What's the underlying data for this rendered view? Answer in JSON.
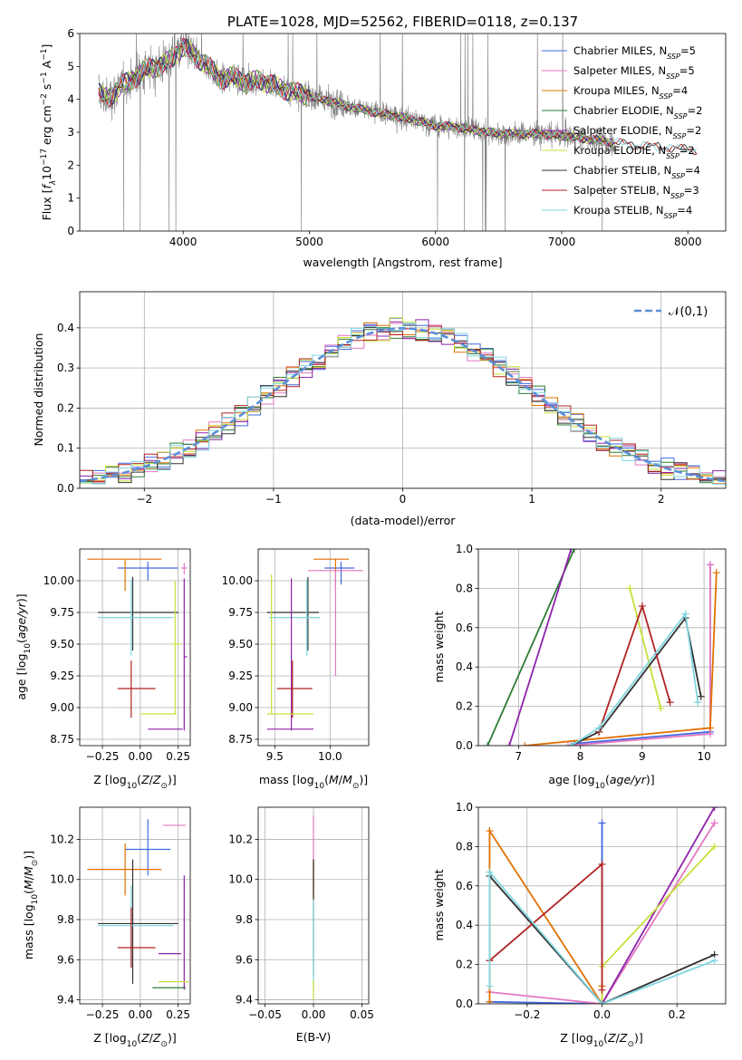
{
  "chart_data": [
    {
      "type": "line",
      "title": "PLATE=1028, MJD=52562, FIBERID=0118, z=0.137",
      "xlabel": "wavelength [Angstrom, rest frame]",
      "ylabel": "Flux [f_λ 10^-17 erg cm^-2 s^-1 A^-1]",
      "xlim": [
        3180,
        8300
      ],
      "ylim": [
        0,
        6
      ],
      "xticks": [
        4000,
        5000,
        6000,
        7000,
        8000
      ],
      "yticks": [
        0,
        1,
        2,
        3,
        4,
        5,
        6
      ],
      "grid": false,
      "legend_position": "top-right",
      "data_color": "#808080",
      "data_range": [
        3330,
        7420
      ],
      "model_range": [
        3330,
        8070
      ],
      "continuum": {
        "x": [
          3330,
          3400,
          3500,
          3600,
          3700,
          3800,
          3900,
          4000,
          4100,
          4200,
          4300,
          4400,
          4500,
          4600,
          4800,
          5000,
          5200,
          5400,
          5600,
          5800,
          6000,
          6200,
          6400,
          6600,
          6800,
          7000,
          7200,
          7400,
          7600,
          7800,
          8070
        ],
        "values": [
          4.2,
          4.0,
          4.4,
          4.6,
          4.9,
          5.0,
          5.2,
          5.6,
          5.3,
          5.0,
          4.6,
          4.7,
          4.5,
          4.6,
          4.3,
          4.1,
          3.9,
          3.7,
          3.55,
          3.4,
          3.2,
          3.15,
          3.0,
          2.95,
          2.95,
          2.9,
          2.8,
          2.7,
          2.6,
          2.55,
          2.45
        ]
      },
      "series": [
        {
          "name": "Chabrier MILES, N_SSP=5",
          "label_main": "Chabrier MILES, N",
          "label_sub": "SSP",
          "label_end": "=5",
          "color": "#4169e1"
        },
        {
          "name": "Salpeter MILES, N_SSP=5",
          "label_main": "Salpeter MILES, N",
          "label_sub": "SSP",
          "label_end": "=5",
          "color": "#e377c2"
        },
        {
          "name": "Kroupa MILES, N_SSP=4",
          "label_main": "Kroupa MILES, N",
          "label_sub": "SSP",
          "label_end": "=4",
          "color": "#e07000"
        },
        {
          "name": "Chabrier ELODIE, N_SSP=2",
          "label_main": "Chabrier ELODIE, N",
          "label_sub": "SSP",
          "label_end": "=2",
          "color": "#2e7d32"
        },
        {
          "name": "Salpeter ELODIE, N_SSP=2",
          "label_main": "Salpeter ELODIE, N",
          "label_sub": "SSP",
          "label_end": "=2",
          "color": "#8e24aa"
        },
        {
          "name": "Kroupa ELODIE, N_SSP=2",
          "label_main": "Kroupa ELODIE, N",
          "label_sub": "SSP",
          "label_end": "=2",
          "color": "#c6e03a"
        },
        {
          "name": "Chabrier STELIB, N_SSP=4",
          "label_main": "Chabrier STELIB, N",
          "label_sub": "SSP",
          "label_end": "=4",
          "color": "#303030"
        },
        {
          "name": "Salpeter STELIB, N_SSP=3",
          "label_main": "Salpeter STELIB, N",
          "label_sub": "SSP",
          "label_end": "=3",
          "color": "#b22222"
        },
        {
          "name": "Kroupa STELIB, N_SSP=4",
          "label_main": "Kroupa STELIB, N",
          "label_sub": "SSP",
          "label_end": "=4",
          "color": "#7fd6e0"
        }
      ]
    },
    {
      "type": "histogram",
      "xlabel": "(data-model)/error",
      "ylabel": "Normed distribution",
      "xlim": [
        -2.5,
        2.5
      ],
      "ylim": [
        0,
        0.49
      ],
      "xticks": [
        -2,
        -1,
        0,
        1,
        2
      ],
      "yticks": [
        0.0,
        0.1,
        0.2,
        0.3,
        0.4
      ],
      "grid": true,
      "legend_position": "top-right",
      "bin_width": 0.1,
      "reference": {
        "name": "𝒩(0,1)",
        "mean": 0,
        "sigma": 1,
        "color": "#5b8fd6"
      }
    },
    {
      "type": "errorbar",
      "xlabel": "Z [log10(Z/Z☉)]",
      "ylabel": "age  [log10(age/yr)]",
      "xlim": [
        -0.4,
        0.33
      ],
      "ylim": [
        8.7,
        10.25
      ],
      "xticks": [
        -0.25,
        0.0,
        0.25
      ],
      "yticks": [
        8.75,
        9.0,
        9.25,
        9.5,
        9.75,
        10.0
      ],
      "grid": true,
      "points": [
        {
          "x": 0.05,
          "xerr": [
            0.2,
            0.2
          ],
          "y": 10.1,
          "yerr": [
            0.1,
            0.05
          ],
          "color": "#4169e1"
        },
        {
          "x": -0.1,
          "xerr": [
            0.25,
            0.24
          ],
          "y": 10.17,
          "yerr": [
            0.25,
            0.0
          ],
          "color": "#e07000"
        },
        {
          "x": 0.29,
          "xerr": [
            0.02,
            0.02
          ],
          "y": 10.1,
          "yerr": [
            0.05,
            0.04
          ],
          "color": "#e377c2"
        },
        {
          "x": -0.05,
          "xerr": [
            0.23,
            0.3
          ],
          "y": 9.75,
          "yerr": [
            0.3,
            0.28
          ],
          "color": "#303030"
        },
        {
          "x": -0.06,
          "xerr": [
            0.22,
            0.28
          ],
          "y": 9.71,
          "yerr": [
            0.3,
            0.3
          ],
          "color": "#7fd6e0"
        },
        {
          "x": 0.23,
          "xerr": [
            0.02,
            0.04
          ],
          "y": 9.5,
          "yerr": [
            0.55,
            0.5
          ],
          "color": "#c6e03a"
        },
        {
          "x": 0.29,
          "xerr": [
            0.0,
            0.02
          ],
          "y": 9.4,
          "yerr": [
            0.58,
            0.62
          ],
          "color": "#8e24aa"
        },
        {
          "x": -0.06,
          "xerr": [
            0.09,
            0.16
          ],
          "y": 9.15,
          "yerr": [
            0.23,
            0.22
          ],
          "color": "#b22222"
        },
        {
          "x": 0.12,
          "xerr": [
            0.12,
            0.12
          ],
          "y": 8.95,
          "yerr": [
            0.0,
            0.0
          ],
          "color": "#c6e03a"
        },
        {
          "x": 0.15,
          "xerr": [
            0.1,
            0.13
          ],
          "y": 8.83,
          "yerr": [
            0.0,
            0.0
          ],
          "color": "#8e24aa"
        }
      ]
    },
    {
      "type": "errorbar",
      "xlabel": "mass [log10(M/M☉)]",
      "ylabel": "",
      "xlim": [
        9.35,
        10.35
      ],
      "ylim": [
        8.7,
        10.25
      ],
      "xticks": [
        9.5,
        10.0
      ],
      "yticks": [
        8.75,
        9.0,
        9.25,
        9.5,
        9.75,
        10.0
      ],
      "grid": true,
      "points": [
        {
          "x": 10.1,
          "xerr": [
            0.15,
            0.12
          ],
          "y": 10.1,
          "yerr": [
            0.13,
            0.05
          ],
          "color": "#4169e1"
        },
        {
          "x": 10.05,
          "xerr": [
            0.2,
            0.12
          ],
          "y": 10.17,
          "yerr": [
            0.22,
            0.0
          ],
          "color": "#e07000"
        },
        {
          "x": 10.05,
          "xerr": [
            0.25,
            0.25
          ],
          "y": 10.08,
          "yerr": [
            0.83,
            0.0
          ],
          "color": "#e377c2"
        },
        {
          "x": 9.8,
          "xerr": [
            0.37,
            0.1
          ],
          "y": 9.75,
          "yerr": [
            0.3,
            0.28
          ],
          "color": "#303030"
        },
        {
          "x": 9.79,
          "xerr": [
            0.34,
            0.12
          ],
          "y": 9.71,
          "yerr": [
            0.3,
            0.3
          ],
          "color": "#7fd6e0"
        },
        {
          "x": 9.47,
          "xerr": [
            0.0,
            0.02
          ],
          "y": 9.5,
          "yerr": [
            0.55,
            0.55
          ],
          "color": "#c6e03a"
        },
        {
          "x": 9.65,
          "xerr": [
            0.0,
            0.0
          ],
          "y": 9.4,
          "yerr": [
            0.58,
            0.62
          ],
          "color": "#8e24aa"
        },
        {
          "x": 9.66,
          "xerr": [
            0.14,
            0.18
          ],
          "y": 9.15,
          "yerr": [
            0.23,
            0.22
          ],
          "color": "#b22222"
        },
        {
          "x": 9.65,
          "xerr": [
            0.22,
            0.2
          ],
          "y": 8.95,
          "yerr": [
            0.0,
            0.0
          ],
          "color": "#c6e03a"
        },
        {
          "x": 9.65,
          "xerr": [
            0.22,
            0.2
          ],
          "y": 8.83,
          "yerr": [
            0.0,
            0.0
          ],
          "color": "#8e24aa"
        }
      ]
    },
    {
      "type": "line",
      "xlabel": "age  [log10(age/yr)]",
      "ylabel": "mass weight",
      "xlim": [
        6.35,
        10.35
      ],
      "ylim": [
        0,
        1
      ],
      "xticks": [
        7,
        8,
        9,
        10
      ],
      "yticks": [
        0.0,
        0.2,
        0.4,
        0.6,
        0.8,
        1.0
      ],
      "grid": true,
      "series": [
        {
          "color": "#4169e1",
          "x": [
            7.9,
            10.1,
            10.1
          ],
          "y": [
            0.01,
            0.07,
            0.92
          ]
        },
        {
          "color": "#e377c2",
          "x": [
            7.8,
            10.1,
            10.1
          ],
          "y": [
            0.0,
            0.06,
            0.92
          ]
        },
        {
          "color": "#e07000",
          "x": [
            7.1,
            10.1,
            10.2
          ],
          "y": [
            0.0,
            0.09,
            0.88
          ]
        },
        {
          "color": "#2e7d32",
          "x": [
            6.5,
            7.9
          ],
          "y": [
            0.0,
            1.0
          ]
        },
        {
          "color": "#8e24aa",
          "x": [
            6.85,
            7.85
          ],
          "y": [
            0.0,
            1.0
          ]
        },
        {
          "color": "#c6e03a",
          "x": [
            8.8,
            9.3
          ],
          "y": [
            0.8,
            0.19
          ]
        },
        {
          "color": "#303030",
          "x": [
            7.85,
            8.3,
            9.7,
            9.95
          ],
          "y": [
            0.0,
            0.07,
            0.65,
            0.25
          ]
        },
        {
          "color": "#b22222",
          "x": [
            8.3,
            9.0,
            9.45
          ],
          "y": [
            0.07,
            0.71,
            0.22
          ]
        },
        {
          "color": "#7fd6e0",
          "x": [
            7.85,
            8.3,
            9.7,
            9.9
          ],
          "y": [
            0.0,
            0.09,
            0.67,
            0.22
          ]
        }
      ]
    },
    {
      "type": "errorbar",
      "xlabel": "Z [log10(Z/Z☉)]",
      "ylabel": "mass [log10(M/M☉)]",
      "xlim": [
        -0.4,
        0.33
      ],
      "ylim": [
        9.38,
        10.36
      ],
      "xticks": [
        -0.25,
        0.0,
        0.25
      ],
      "yticks": [
        9.4,
        9.6,
        9.8,
        10.0,
        10.2
      ],
      "grid": true,
      "points": [
        {
          "x": 0.25,
          "xerr": [
            0.1,
            0.05
          ],
          "y": 10.27,
          "yerr": [
            0.0,
            0.0
          ],
          "color": "#e377c2"
        },
        {
          "x": 0.05,
          "xerr": [
            0.15,
            0.15
          ],
          "y": 10.15,
          "yerr": [
            0.13,
            0.15
          ],
          "color": "#4169e1"
        },
        {
          "x": -0.1,
          "xerr": [
            0.25,
            0.24
          ],
          "y": 10.05,
          "yerr": [
            0.13,
            0.13
          ],
          "color": "#e07000"
        },
        {
          "x": -0.05,
          "xerr": [
            0.23,
            0.3
          ],
          "y": 9.78,
          "yerr": [
            0.3,
            0.32
          ],
          "color": "#303030"
        },
        {
          "x": -0.06,
          "xerr": [
            0.22,
            0.28
          ],
          "y": 9.77,
          "yerr": [
            0.2,
            0.2
          ],
          "color": "#7fd6e0"
        },
        {
          "x": -0.06,
          "xerr": [
            0.09,
            0.16
          ],
          "y": 9.66,
          "yerr": [
            0.1,
            0.2
          ],
          "color": "#b22222"
        },
        {
          "x": 0.22,
          "xerr": [
            0.1,
            0.05
          ],
          "y": 9.63,
          "yerr": [
            0.0,
            0.0
          ],
          "color": "#8e24aa"
        },
        {
          "x": 0.29,
          "xerr": [
            0.0,
            0.0
          ],
          "y": 9.7,
          "yerr": [
            0.25,
            0.32
          ],
          "color": "#8e24aa"
        },
        {
          "x": 0.22,
          "xerr": [
            0.1,
            0.1
          ],
          "y": 9.49,
          "yerr": [
            0.0,
            0.0
          ],
          "color": "#c6e03a"
        },
        {
          "x": 0.2,
          "xerr": [
            0.12,
            0.1
          ],
          "y": 9.46,
          "yerr": [
            0.0,
            0.0
          ],
          "color": "#2e7d32"
        }
      ]
    },
    {
      "type": "errorbar",
      "xlabel": "E(B-V)",
      "ylabel": "",
      "xlim": [
        -0.057,
        0.057
      ],
      "ylim": [
        9.38,
        10.36
      ],
      "xticks": [
        -0.05,
        0.0,
        0.05
      ],
      "yticks": [
        9.4,
        9.6,
        9.8,
        10.0,
        10.2
      ],
      "grid": true,
      "points": [
        {
          "x": 0.0,
          "xerr": [
            0.0,
            0.0
          ],
          "y": 10.1,
          "yerr": [
            0.15,
            0.22
          ],
          "color": "#e377c2"
        },
        {
          "x": 0.0,
          "xerr": [
            0.0,
            0.0
          ],
          "y": 10.0,
          "yerr": [
            0.1,
            0.1
          ],
          "color": "#e07000"
        },
        {
          "x": 0.0,
          "xerr": [
            0.0,
            0.0
          ],
          "y": 9.8,
          "yerr": [
            0.28,
            0.3
          ],
          "color": "#303030"
        },
        {
          "x": 0.0,
          "xerr": [
            0.0,
            0.0
          ],
          "y": 9.6,
          "yerr": [
            0.18,
            0.3
          ],
          "color": "#7fd6e0"
        },
        {
          "x": 0.0,
          "xerr": [
            0.0,
            0.0
          ],
          "y": 9.45,
          "yerr": [
            0.05,
            0.05
          ],
          "color": "#c6e03a"
        }
      ]
    },
    {
      "type": "line",
      "xlabel": "Z [log10(Z/Z☉)]",
      "ylabel": "mass weight",
      "xlim": [
        -0.33,
        0.33
      ],
      "ylim": [
        0,
        1
      ],
      "xticks": [
        -0.2,
        0.0,
        0.2
      ],
      "yticks": [
        0.0,
        0.2,
        0.4,
        0.6,
        0.8,
        1.0
      ],
      "grid": true,
      "series": [
        {
          "color": "#4169e1",
          "x": [
            -0.3,
            0.0,
            0.0
          ],
          "y": [
            0.01,
            0.0,
            0.92
          ]
        },
        {
          "color": "#e377c2",
          "x": [
            -0.3,
            0.0,
            0.3
          ],
          "y": [
            0.06,
            0.0,
            0.92
          ]
        },
        {
          "color": "#e07000",
          "x": [
            -0.3,
            -0.3,
            0.0,
            0.0
          ],
          "y": [
            0.01,
            0.88,
            0.0,
            0.09
          ]
        },
        {
          "color": "#8e24aa",
          "x": [
            0.0,
            0.3
          ],
          "y": [
            0.0,
            1.0
          ]
        },
        {
          "color": "#c6e03a",
          "x": [
            0.0,
            0.0,
            0.3
          ],
          "y": [
            0.0,
            0.19,
            0.8
          ]
        },
        {
          "color": "#303030",
          "x": [
            -0.3,
            0.0,
            0.3
          ],
          "y": [
            0.65,
            0.0,
            0.25
          ]
        },
        {
          "color": "#b22222",
          "x": [
            -0.3,
            0.0,
            0.0
          ],
          "y": [
            0.22,
            0.71,
            0.07
          ]
        },
        {
          "color": "#7fd6e0",
          "x": [
            -0.3,
            -0.3,
            0.0,
            0.3
          ],
          "y": [
            0.09,
            0.67,
            0.0,
            0.22
          ]
        }
      ]
    }
  ]
}
